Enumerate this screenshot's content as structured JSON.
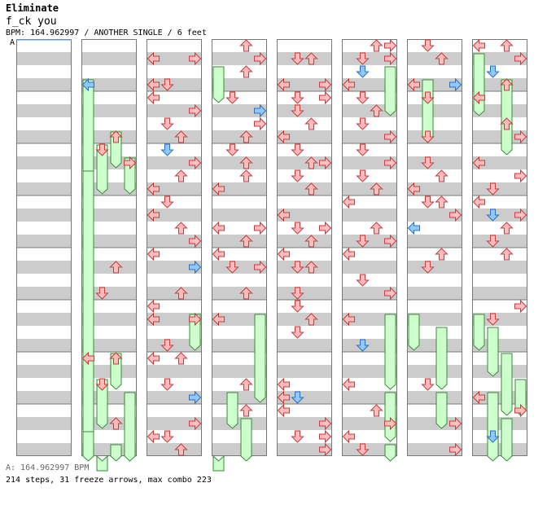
{
  "song": {
    "title": "Eliminate",
    "subtitle": "f_ck you",
    "bpm_line": "BPM: 164.962997 / ANOTHER SINGLE / 6 feet",
    "bpm_marker": "A"
  },
  "footer": {
    "bpm_note": "A: 164.962997 BPM",
    "stats": "214 steps, 31 freeze arrows, max combo 223"
  },
  "colors": {
    "red_fill": "#ffbcbc",
    "red_stroke": "#c43c3c",
    "blue_fill": "#8fc8ff",
    "blue_stroke": "#2d6fb8",
    "pink_fill": "#ffb4ff",
    "pink_stroke": "#b43cb4",
    "freeze_fill": "#ccffcc",
    "freeze_stroke": "#3a8a3a",
    "stripe": "#cccccc",
    "border": "#777777"
  },
  "chart_data": {
    "type": "step-chart",
    "lanes": [
      "left",
      "down",
      "up",
      "right"
    ],
    "columns": 8,
    "measures_per_column": 8,
    "arrows": [
      {
        "c": 1,
        "lane": "left",
        "p": 0.875
      },
      {
        "c": 1,
        "lane": "up",
        "p": 1.875
      },
      {
        "c": 1,
        "lane": "down",
        "p": 2.125
      },
      {
        "c": 1,
        "lane": "right",
        "p": 2.375
      },
      {
        "c": 1,
        "lane": "up",
        "p": 4.375
      },
      {
        "c": 1,
        "lane": "down",
        "p": 4.875
      },
      {
        "c": 1,
        "lane": "left",
        "p": 6.125
      },
      {
        "c": 1,
        "lane": "up",
        "p": 6.125
      },
      {
        "c": 1,
        "lane": "down",
        "p": 6.625
      },
      {
        "c": 1,
        "lane": "up",
        "p": 7.375
      },
      {
        "c": 2,
        "lane": "left",
        "p": 0.375
      },
      {
        "c": 2,
        "lane": "right",
        "p": 0.375
      },
      {
        "c": 2,
        "lane": "left",
        "p": 0.875
      },
      {
        "c": 2,
        "lane": "down",
        "p": 0.875
      },
      {
        "c": 2,
        "lane": "left",
        "p": 1.125
      },
      {
        "c": 2,
        "lane": "right",
        "p": 1.375
      },
      {
        "c": 2,
        "lane": "down",
        "p": 1.625
      },
      {
        "c": 2,
        "lane": "up",
        "p": 1.875
      },
      {
        "c": 2,
        "lane": "down",
        "p": 2.125
      },
      {
        "c": 2,
        "lane": "right",
        "p": 2.375
      },
      {
        "c": 2,
        "lane": "up",
        "p": 2.625
      },
      {
        "c": 2,
        "lane": "left",
        "p": 2.875
      },
      {
        "c": 2,
        "lane": "left",
        "p": 3.375
      },
      {
        "c": 2,
        "lane": "down",
        "p": 3.125
      },
      {
        "c": 2,
        "lane": "up",
        "p": 3.625
      },
      {
        "c": 2,
        "lane": "right",
        "p": 3.875
      },
      {
        "c": 2,
        "lane": "left",
        "p": 4.125
      },
      {
        "c": 2,
        "lane": "right",
        "p": 4.375
      },
      {
        "c": 2,
        "lane": "up",
        "p": 4.875
      },
      {
        "c": 2,
        "lane": "left",
        "p": 5.125
      },
      {
        "c": 2,
        "lane": "left",
        "p": 5.375
      },
      {
        "c": 2,
        "lane": "right",
        "p": 5.375
      },
      {
        "c": 2,
        "lane": "down",
        "p": 5.875
      },
      {
        "c": 2,
        "lane": "left",
        "p": 6.125
      },
      {
        "c": 2,
        "lane": "up",
        "p": 6.125
      },
      {
        "c": 2,
        "lane": "down",
        "p": 6.625
      },
      {
        "c": 2,
        "lane": "right",
        "p": 6.875
      },
      {
        "c": 2,
        "lane": "right",
        "p": 7.375
      },
      {
        "c": 2,
        "lane": "left",
        "p": 7.625
      },
      {
        "c": 2,
        "lane": "down",
        "p": 7.625
      },
      {
        "c": 2,
        "lane": "up",
        "p": 7.875
      },
      {
        "c": 3,
        "lane": "up",
        "p": 0.125
      },
      {
        "c": 3,
        "lane": "right",
        "p": 0.375
      },
      {
        "c": 3,
        "lane": "up",
        "p": 0.625
      },
      {
        "c": 3,
        "lane": "down",
        "p": 1.125
      },
      {
        "c": 3,
        "lane": "right",
        "p": 1.375
      },
      {
        "c": 3,
        "lane": "right",
        "p": 1.625
      },
      {
        "c": 3,
        "lane": "up",
        "p": 1.875
      },
      {
        "c": 3,
        "lane": "down",
        "p": 2.125
      },
      {
        "c": 3,
        "lane": "up",
        "p": 2.375
      },
      {
        "c": 3,
        "lane": "up",
        "p": 2.625
      },
      {
        "c": 3,
        "lane": "left",
        "p": 2.875
      },
      {
        "c": 3,
        "lane": "left",
        "p": 3.625
      },
      {
        "c": 3,
        "lane": "right",
        "p": 3.625
      },
      {
        "c": 3,
        "lane": "up",
        "p": 3.875
      },
      {
        "c": 3,
        "lane": "left",
        "p": 4.125
      },
      {
        "c": 3,
        "lane": "down",
        "p": 4.375
      },
      {
        "c": 3,
        "lane": "right",
        "p": 4.375
      },
      {
        "c": 3,
        "lane": "up",
        "p": 4.875
      },
      {
        "c": 3,
        "lane": "left",
        "p": 5.375
      },
      {
        "c": 3,
        "lane": "up",
        "p": 6.625
      },
      {
        "c": 3,
        "lane": "up",
        "p": 7.125
      },
      {
        "c": 4,
        "lane": "down",
        "p": 0.375
      },
      {
        "c": 4,
        "lane": "up",
        "p": 0.375
      },
      {
        "c": 4,
        "lane": "left",
        "p": 0.875
      },
      {
        "c": 4,
        "lane": "right",
        "p": 0.875
      },
      {
        "c": 4,
        "lane": "down",
        "p": 1.125
      },
      {
        "c": 4,
        "lane": "right",
        "p": 1.125
      },
      {
        "c": 4,
        "lane": "down",
        "p": 1.375
      },
      {
        "c": 4,
        "lane": "up",
        "p": 1.625
      },
      {
        "c": 4,
        "lane": "left",
        "p": 1.875
      },
      {
        "c": 4,
        "lane": "down",
        "p": 2.125
      },
      {
        "c": 4,
        "lane": "up",
        "p": 2.375
      },
      {
        "c": 4,
        "lane": "right",
        "p": 2.375
      },
      {
        "c": 4,
        "lane": "down",
        "p": 2.625
      },
      {
        "c": 4,
        "lane": "up",
        "p": 2.875
      },
      {
        "c": 4,
        "lane": "left",
        "p": 3.375
      },
      {
        "c": 4,
        "lane": "down",
        "p": 3.625
      },
      {
        "c": 4,
        "lane": "right",
        "p": 3.625
      },
      {
        "c": 4,
        "lane": "up",
        "p": 3.875
      },
      {
        "c": 4,
        "lane": "left",
        "p": 4.125
      },
      {
        "c": 4,
        "lane": "up",
        "p": 4.375
      },
      {
        "c": 4,
        "lane": "down",
        "p": 4.375
      },
      {
        "c": 4,
        "lane": "down",
        "p": 4.875
      },
      {
        "c": 4,
        "lane": "down",
        "p": 5.125
      },
      {
        "c": 4,
        "lane": "up",
        "p": 5.375
      },
      {
        "c": 4,
        "lane": "down",
        "p": 5.625
      },
      {
        "c": 4,
        "lane": "left",
        "p": 6.625
      },
      {
        "c": 4,
        "lane": "left",
        "p": 6.875
      },
      {
        "c": 4,
        "lane": "left",
        "p": 7.125
      },
      {
        "c": 4,
        "lane": "down",
        "p": 6.875
      },
      {
        "c": 4,
        "lane": "right",
        "p": 7.375
      },
      {
        "c": 4,
        "lane": "down",
        "p": 7.625
      },
      {
        "c": 4,
        "lane": "right",
        "p": 7.625
      },
      {
        "c": 4,
        "lane": "right",
        "p": 7.875
      },
      {
        "c": 4,
        "lane": "right",
        "p": 8.125
      },
      {
        "c": 4,
        "lane": "down",
        "p": 8.375
      },
      {
        "c": 4,
        "lane": "right",
        "p": 8.375
      },
      {
        "c": 5,
        "lane": "up",
        "p": 0.125
      },
      {
        "c": 5,
        "lane": "down",
        "p": 0.625
      },
      {
        "c": 5,
        "lane": "left",
        "p": 0.875
      },
      {
        "c": 5,
        "lane": "down",
        "p": 1.125
      },
      {
        "c": 5,
        "lane": "up",
        "p": 1.375
      },
      {
        "c": 5,
        "lane": "down",
        "p": 1.625
      },
      {
        "c": 5,
        "lane": "right",
        "p": 1.875
      },
      {
        "c": 5,
        "lane": "down",
        "p": 2.125
      },
      {
        "c": 5,
        "lane": "right",
        "p": 2.375
      },
      {
        "c": 5,
        "lane": "down",
        "p": 2.625
      },
      {
        "c": 5,
        "lane": "up",
        "p": 2.875
      },
      {
        "c": 5,
        "lane": "left",
        "p": 3.125
      },
      {
        "c": 5,
        "lane": "up",
        "p": 3.625
      },
      {
        "c": 5,
        "lane": "down",
        "p": 3.875
      },
      {
        "c": 5,
        "lane": "right",
        "p": 3.875
      },
      {
        "c": 5,
        "lane": "left",
        "p": 4.125
      },
      {
        "c": 5,
        "lane": "down",
        "p": 4.625
      },
      {
        "c": 5,
        "lane": "right",
        "p": 4.875
      },
      {
        "c": 5,
        "lane": "left",
        "p": 5.375
      },
      {
        "c": 5,
        "lane": "down",
        "p": 5.875
      },
      {
        "c": 5,
        "lane": "left",
        "p": 6.625
      },
      {
        "c": 5,
        "lane": "up",
        "p": 7.125
      },
      {
        "c": 5,
        "lane": "right",
        "p": 7.375
      },
      {
        "c": 5,
        "lane": "left",
        "p": 7.625
      },
      {
        "c": 5,
        "lane": "down",
        "p": 7.875
      },
      {
        "c": 6,
        "lane": "down",
        "p": 0.125
      },
      {
        "c": 6,
        "lane": "up",
        "p": 0.375
      },
      {
        "c": 6,
        "lane": "left",
        "p": 0.875
      },
      {
        "c": 6,
        "lane": "right",
        "p": 0.875
      },
      {
        "c": 6,
        "lane": "down",
        "p": 1.125
      },
      {
        "c": 6,
        "lane": "down",
        "p": 1.875
      },
      {
        "c": 6,
        "lane": "down",
        "p": 2.375
      },
      {
        "c": 6,
        "lane": "up",
        "p": 2.625
      },
      {
        "c": 6,
        "lane": "left",
        "p": 2.875
      },
      {
        "c": 6,
        "lane": "down",
        "p": 3.125
      },
      {
        "c": 6,
        "lane": "up",
        "p": 3.125
      },
      {
        "c": 6,
        "lane": "right",
        "p": 3.375
      },
      {
        "c": 6,
        "lane": "left",
        "p": 3.625
      },
      {
        "c": 6,
        "lane": "up",
        "p": 4.125
      },
      {
        "c": 6,
        "lane": "down",
        "p": 4.375
      },
      {
        "c": 6,
        "lane": "down",
        "p": 6.625
      },
      {
        "c": 6,
        "lane": "right",
        "p": 7.375
      },
      {
        "c": 6,
        "lane": "right",
        "p": 7.875
      },
      {
        "c": 7,
        "lane": "left",
        "p": 0.125
      },
      {
        "c": 7,
        "lane": "up",
        "p": 0.125
      },
      {
        "c": 7,
        "lane": "right",
        "p": 0.375
      },
      {
        "c": 7,
        "lane": "down",
        "p": 0.625
      },
      {
        "c": 7,
        "lane": "up",
        "p": 0.875
      },
      {
        "c": 7,
        "lane": "left",
        "p": 1.125
      },
      {
        "c": 7,
        "lane": "up",
        "p": 1.625
      },
      {
        "c": 7,
        "lane": "right",
        "p": 1.875
      },
      {
        "c": 7,
        "lane": "left",
        "p": 2.375
      },
      {
        "c": 7,
        "lane": "right",
        "p": 2.625
      },
      {
        "c": 7,
        "lane": "down",
        "p": 2.875
      },
      {
        "c": 7,
        "lane": "left",
        "p": 3.125
      },
      {
        "c": 7,
        "lane": "down",
        "p": 3.375
      },
      {
        "c": 7,
        "lane": "right",
        "p": 3.375
      },
      {
        "c": 7,
        "lane": "up",
        "p": 3.625
      },
      {
        "c": 7,
        "lane": "down",
        "p": 3.875
      },
      {
        "c": 7,
        "lane": "up",
        "p": 4.125
      },
      {
        "c": 7,
        "lane": "right",
        "p": 5.125
      },
      {
        "c": 7,
        "lane": "down",
        "p": 5.375
      },
      {
        "c": 7,
        "lane": "left",
        "p": 6.875
      },
      {
        "c": 7,
        "lane": "right",
        "p": 7.125
      },
      {
        "c": 7,
        "lane": "down",
        "p": 7.625
      }
    ]
  }
}
